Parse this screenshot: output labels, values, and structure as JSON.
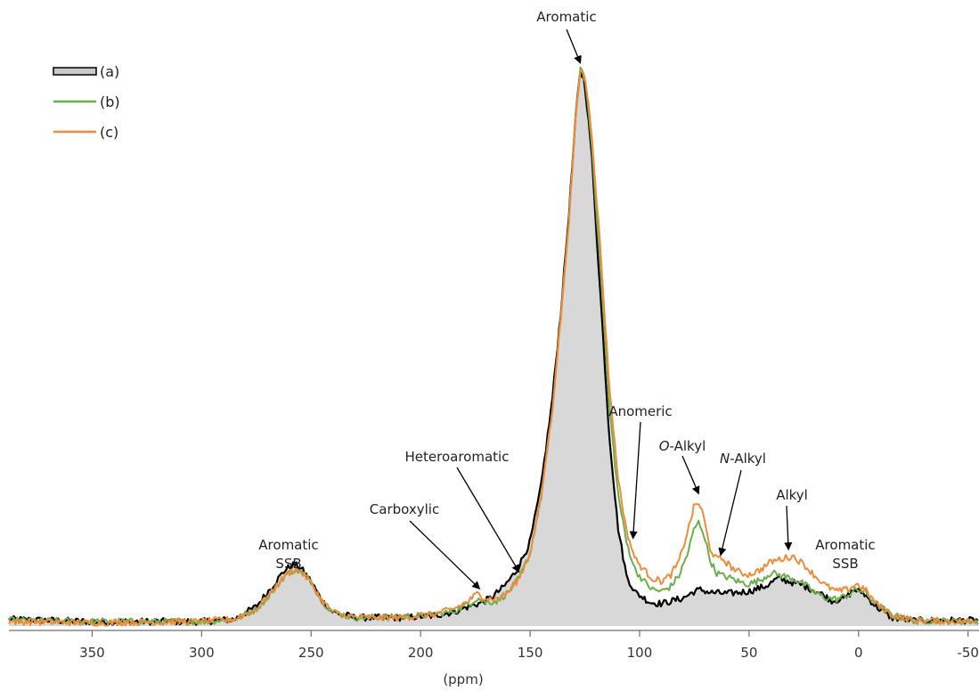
{
  "chart_data": {
    "type": "line",
    "xlabel": "(ppm)",
    "ylabel": "",
    "x_reversed": true,
    "xlim": [
      388,
      -55
    ],
    "ylim": [
      0,
      1
    ],
    "x_ticks": [
      350,
      300,
      250,
      200,
      150,
      100,
      50,
      0,
      -50
    ],
    "x_tick_labels": [
      "350",
      "300",
      "250",
      "200",
      "150",
      "100",
      "50",
      "0",
      "-50"
    ],
    "grid": false,
    "legend_position": "top-left",
    "legend": [
      {
        "label": "(a)",
        "style": "filled",
        "color": "#000000",
        "fill": "#c8c8c8"
      },
      {
        "label": "(b)",
        "style": "line",
        "color": "#6aaf4a"
      },
      {
        "label": "(c)",
        "style": "line",
        "color": "#f08b3c"
      }
    ],
    "series": [
      {
        "name": "(a)",
        "color": "#000000",
        "fill": "#d9d8d8",
        "points": [
          [
            388,
            0.012
          ],
          [
            350,
            0.008
          ],
          [
            300,
            0.008
          ],
          [
            285,
            0.012
          ],
          [
            275,
            0.035
          ],
          [
            268,
            0.07
          ],
          [
            262,
            0.1
          ],
          [
            258,
            0.11
          ],
          [
            255,
            0.105
          ],
          [
            250,
            0.08
          ],
          [
            245,
            0.045
          ],
          [
            240,
            0.025
          ],
          [
            230,
            0.015
          ],
          [
            210,
            0.015
          ],
          [
            195,
            0.018
          ],
          [
            185,
            0.025
          ],
          [
            178,
            0.035
          ],
          [
            172,
            0.042
          ],
          [
            168,
            0.05
          ],
          [
            162,
            0.07
          ],
          [
            156,
            0.1
          ],
          [
            150,
            0.15
          ],
          [
            145,
            0.25
          ],
          [
            140,
            0.4
          ],
          [
            136,
            0.56
          ],
          [
            132,
            0.75
          ],
          [
            129,
            0.92
          ],
          [
            127,
            0.995
          ],
          [
            125,
            0.97
          ],
          [
            122,
            0.85
          ],
          [
            118,
            0.6
          ],
          [
            114,
            0.35
          ],
          [
            110,
            0.18
          ],
          [
            106,
            0.09
          ],
          [
            102,
            0.06
          ],
          [
            98,
            0.05
          ],
          [
            95,
            0.042
          ],
          [
            90,
            0.04
          ],
          [
            85,
            0.045
          ],
          [
            80,
            0.05
          ],
          [
            75,
            0.062
          ],
          [
            72,
            0.065
          ],
          [
            68,
            0.06
          ],
          [
            60,
            0.058
          ],
          [
            50,
            0.062
          ],
          [
            42,
            0.072
          ],
          [
            37,
            0.085
          ],
          [
            32,
            0.08
          ],
          [
            25,
            0.072
          ],
          [
            18,
            0.06
          ],
          [
            12,
            0.045
          ],
          [
            6,
            0.05
          ],
          [
            2,
            0.065
          ],
          [
            -2,
            0.06
          ],
          [
            -8,
            0.035
          ],
          [
            -15,
            0.015
          ],
          [
            -25,
            0.01
          ],
          [
            -55,
            0.01
          ]
        ]
      },
      {
        "name": "(b)",
        "color": "#6aaf4a",
        "points": [
          [
            388,
            0.01
          ],
          [
            350,
            0.008
          ],
          [
            300,
            0.008
          ],
          [
            285,
            0.012
          ],
          [
            275,
            0.03
          ],
          [
            268,
            0.06
          ],
          [
            262,
            0.09
          ],
          [
            258,
            0.1
          ],
          [
            255,
            0.098
          ],
          [
            250,
            0.08
          ],
          [
            245,
            0.045
          ],
          [
            240,
            0.025
          ],
          [
            230,
            0.015
          ],
          [
            210,
            0.016
          ],
          [
            195,
            0.02
          ],
          [
            185,
            0.026
          ],
          [
            178,
            0.04
          ],
          [
            174,
            0.05
          ],
          [
            170,
            0.042
          ],
          [
            165,
            0.045
          ],
          [
            160,
            0.06
          ],
          [
            155,
            0.085
          ],
          [
            150,
            0.13
          ],
          [
            145,
            0.23
          ],
          [
            140,
            0.38
          ],
          [
            136,
            0.55
          ],
          [
            132,
            0.74
          ],
          [
            129,
            0.92
          ],
          [
            127,
            0.995
          ],
          [
            125,
            0.98
          ],
          [
            122,
            0.87
          ],
          [
            118,
            0.65
          ],
          [
            114,
            0.4
          ],
          [
            110,
            0.24
          ],
          [
            106,
            0.15
          ],
          [
            102,
            0.1
          ],
          [
            98,
            0.08
          ],
          [
            94,
            0.065
          ],
          [
            90,
            0.062
          ],
          [
            86,
            0.07
          ],
          [
            82,
            0.09
          ],
          [
            78,
            0.13
          ],
          [
            75,
            0.175
          ],
          [
            73,
            0.185
          ],
          [
            71,
            0.17
          ],
          [
            68,
            0.12
          ],
          [
            65,
            0.095
          ],
          [
            62,
            0.09
          ],
          [
            58,
            0.085
          ],
          [
            54,
            0.078
          ],
          [
            50,
            0.075
          ],
          [
            45,
            0.082
          ],
          [
            40,
            0.095
          ],
          [
            35,
            0.09
          ],
          [
            30,
            0.085
          ],
          [
            25,
            0.075
          ],
          [
            20,
            0.06
          ],
          [
            15,
            0.05
          ],
          [
            10,
            0.048
          ],
          [
            5,
            0.055
          ],
          [
            1,
            0.065
          ],
          [
            -3,
            0.06
          ],
          [
            -8,
            0.04
          ],
          [
            -15,
            0.02
          ],
          [
            -25,
            0.01
          ],
          [
            -55,
            0.008
          ]
        ]
      },
      {
        "name": "(c)",
        "color": "#f08b3c",
        "points": [
          [
            388,
            0.008
          ],
          [
            350,
            0.006
          ],
          [
            300,
            0.008
          ],
          [
            285,
            0.012
          ],
          [
            275,
            0.03
          ],
          [
            268,
            0.06
          ],
          [
            262,
            0.09
          ],
          [
            258,
            0.1
          ],
          [
            255,
            0.098
          ],
          [
            250,
            0.078
          ],
          [
            245,
            0.045
          ],
          [
            240,
            0.025
          ],
          [
            230,
            0.015
          ],
          [
            210,
            0.015
          ],
          [
            195,
            0.02
          ],
          [
            185,
            0.03
          ],
          [
            178,
            0.045
          ],
          [
            174,
            0.058
          ],
          [
            170,
            0.05
          ],
          [
            165,
            0.048
          ],
          [
            160,
            0.06
          ],
          [
            155,
            0.085
          ],
          [
            150,
            0.13
          ],
          [
            145,
            0.23
          ],
          [
            140,
            0.38
          ],
          [
            136,
            0.55
          ],
          [
            132,
            0.74
          ],
          [
            129,
            0.92
          ],
          [
            127,
            0.995
          ],
          [
            125,
            0.985
          ],
          [
            122,
            0.89
          ],
          [
            118,
            0.68
          ],
          [
            114,
            0.44
          ],
          [
            110,
            0.27
          ],
          [
            106,
            0.17
          ],
          [
            102,
            0.12
          ],
          [
            98,
            0.1
          ],
          [
            94,
            0.085
          ],
          [
            90,
            0.08
          ],
          [
            86,
            0.09
          ],
          [
            82,
            0.115
          ],
          [
            78,
            0.17
          ],
          [
            75,
            0.215
          ],
          [
            73,
            0.22
          ],
          [
            71,
            0.2
          ],
          [
            68,
            0.14
          ],
          [
            65,
            0.12
          ],
          [
            62,
            0.12
          ],
          [
            58,
            0.105
          ],
          [
            54,
            0.095
          ],
          [
            50,
            0.092
          ],
          [
            45,
            0.1
          ],
          [
            40,
            0.115
          ],
          [
            35,
            0.12
          ],
          [
            30,
            0.125
          ],
          [
            25,
            0.11
          ],
          [
            20,
            0.09
          ],
          [
            15,
            0.072
          ],
          [
            10,
            0.062
          ],
          [
            5,
            0.065
          ],
          [
            1,
            0.075
          ],
          [
            -3,
            0.065
          ],
          [
            -8,
            0.04
          ],
          [
            -15,
            0.02
          ],
          [
            -25,
            0.01
          ],
          [
            -55,
            0.008
          ]
        ]
      }
    ],
    "annotations": [
      {
        "id": "aromatic-top",
        "lines": [
          "Aromatic"
        ],
        "italic_prefix": "",
        "arrow_to": [
          127,
          1.0
        ]
      },
      {
        "id": "anomeric",
        "lines": [
          "Anomeric"
        ],
        "italic_prefix": "",
        "arrow_to": [
          103,
          0.15
        ]
      },
      {
        "id": "o-alkyl",
        "lines": [
          "-Alkyl"
        ],
        "italic_prefix": "O",
        "arrow_to": [
          73,
          0.23
        ]
      },
      {
        "id": "n-alkyl",
        "lines": [
          "-Alkyl"
        ],
        "italic_prefix": "N",
        "arrow_to": [
          63,
          0.12
        ]
      },
      {
        "id": "alkyl",
        "lines": [
          "Alkyl"
        ],
        "italic_prefix": "",
        "arrow_to": [
          32,
          0.13
        ]
      },
      {
        "id": "heteroaromatic",
        "lines": [
          "Heteroaromatic"
        ],
        "italic_prefix": "",
        "arrow_to": [
          155,
          0.09
        ]
      },
      {
        "id": "carboxylic",
        "lines": [
          "Carboxylic"
        ],
        "italic_prefix": "",
        "arrow_to": [
          173,
          0.06
        ]
      },
      {
        "id": "aromatic-ssb-left",
        "lines": [
          "Aromatic",
          "SSB"
        ],
        "italic_prefix": "",
        "arrow_to": null
      },
      {
        "id": "aromatic-ssb-right",
        "lines": [
          "Aromatic",
          "SSB"
        ],
        "italic_prefix": "",
        "arrow_to": null
      }
    ]
  }
}
